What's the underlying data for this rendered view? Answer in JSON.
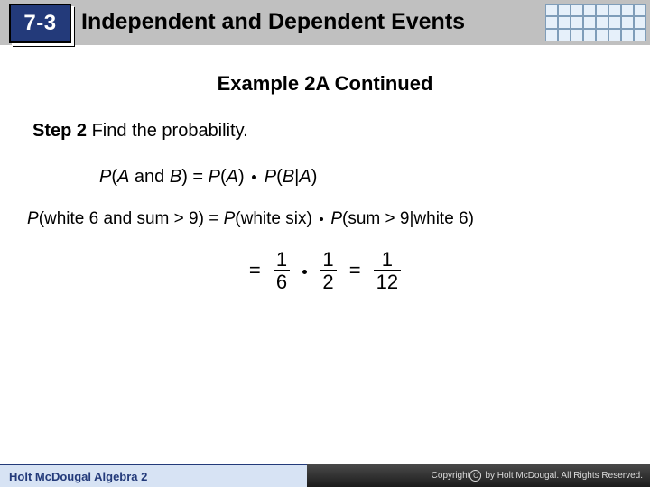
{
  "header": {
    "badge": "7-3",
    "title": "Independent and Dependent Events",
    "badge_bg": "#233a7a",
    "header_bg": "#c0c0c0"
  },
  "subtitle": "Example 2A Continued",
  "step": {
    "label": "Step 2",
    "text": " Find the probability."
  },
  "formula1": {
    "lhs_P": "P",
    "lhs_paren_open": "(",
    "A": "A",
    "and": " and ",
    "B": "B",
    "lhs_paren_close": ")",
    "eq": " = ",
    "rhs1_P": "P",
    "rp1o": "(",
    "rA": "A",
    "rp1c": ") ",
    "rhs2_P": "P",
    "rp2o": "(",
    "rB": "B",
    "bar": "|",
    "rA2": "A",
    "rp2c": ")"
  },
  "formula2": {
    "P1": "P",
    "p1o": "(",
    "t1": "white 6 and sum > 9",
    "p1c": ") ",
    "eq": "= ",
    "P2": "P",
    "p2o": "(",
    "t2": "white six",
    "p2c": ") ",
    "P3": "P",
    "p3o": "(",
    "t3": "sum > 9|white 6",
    "p3c": ")"
  },
  "calc": {
    "eq1": "=",
    "n1": "1",
    "d1": "6",
    "n2": "1",
    "d2": "2",
    "eq2": "=",
    "n3": "1",
    "d3": "12"
  },
  "footer": {
    "left": "Holt McDougal Algebra 2",
    "right": "by Holt McDougal. All Rights Reserved.",
    "copyright": "Copyright "
  }
}
